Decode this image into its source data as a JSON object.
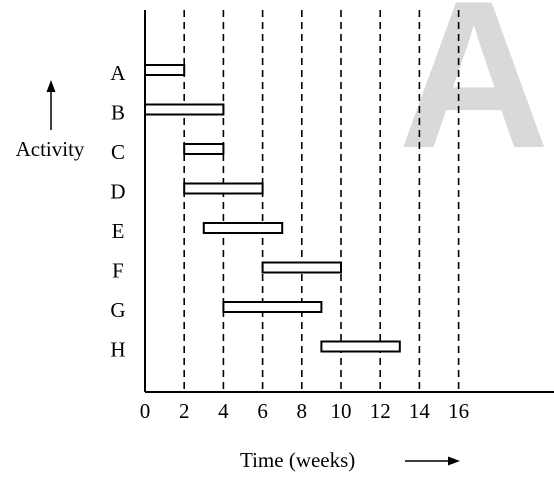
{
  "watermark": "A",
  "chart_data": {
    "type": "bar",
    "orientation": "horizontal",
    "title": "",
    "xlabel": "Time (weeks)",
    "ylabel": "Activity",
    "xlim": [
      0,
      16
    ],
    "xticks": [
      "0",
      "2",
      "4",
      "6",
      "8",
      "10",
      "12",
      "14",
      "16"
    ],
    "grid": "dashed vertical lines at 2, 4, 6, 8, 10, 12, 14, 16",
    "categories": [
      "A",
      "B",
      "C",
      "D",
      "E",
      "F",
      "G",
      "H"
    ],
    "bars": [
      {
        "activity": "A",
        "start": 0,
        "end": 2
      },
      {
        "activity": "B",
        "start": 0,
        "end": 4
      },
      {
        "activity": "C",
        "start": 2,
        "end": 4
      },
      {
        "activity": "D",
        "start": 2,
        "end": 6
      },
      {
        "activity": "E",
        "start": 3,
        "end": 7
      },
      {
        "activity": "F",
        "start": 6,
        "end": 10
      },
      {
        "activity": "G",
        "start": 4,
        "end": 9
      },
      {
        "activity": "H",
        "start": 9,
        "end": 13
      }
    ]
  }
}
